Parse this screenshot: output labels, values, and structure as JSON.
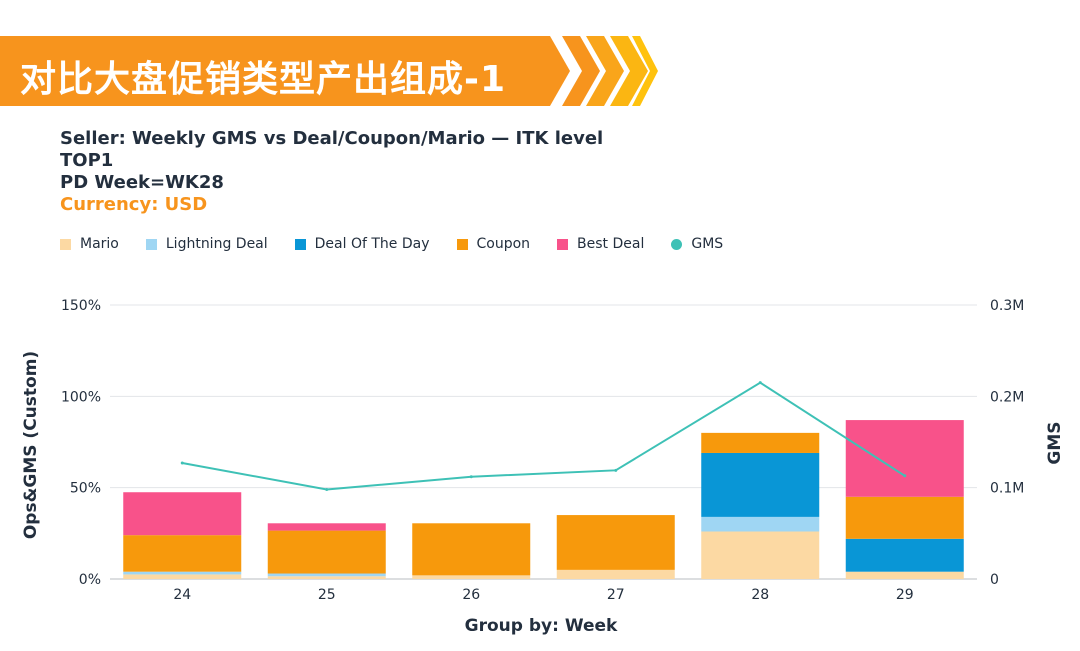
{
  "banner": {
    "title": "对比大盘促销类型产出组成-1",
    "color": "#f7941d",
    "chevron_colors": [
      "#f7941d",
      "#f9a51a",
      "#fbb612",
      "#ffc20e"
    ]
  },
  "info": {
    "line1": "Seller: Weekly GMS vs Deal/Coupon/Mario — ITK level",
    "line2": "TOP1",
    "line3": "PD Week=WK28",
    "currency": "Currency: USD"
  },
  "legend": [
    {
      "label": "Mario",
      "color": "#fcd9a3",
      "shape": "square"
    },
    {
      "label": "Lightning Deal",
      "color": "#9fd6f3",
      "shape": "square"
    },
    {
      "label": "Deal Of The Day",
      "color": "#0996d6",
      "shape": "square"
    },
    {
      "label": "Coupon",
      "color": "#f7990c",
      "shape": "square"
    },
    {
      "label": "Best Deal",
      "color": "#f8528a",
      "shape": "square"
    },
    {
      "label": "GMS",
      "color": "#3ec1b6",
      "shape": "circle"
    }
  ],
  "chart_data": {
    "type": "bar",
    "stacked": true,
    "categories": [
      "24",
      "25",
      "26",
      "27",
      "28",
      "29"
    ],
    "series": [
      {
        "name": "Mario",
        "color": "#fcd9a3",
        "values": [
          2.5,
          1.5,
          2,
          5,
          26,
          4
        ]
      },
      {
        "name": "Lightning Deal",
        "color": "#9fd6f3",
        "values": [
          1.5,
          1.5,
          0,
          0,
          8,
          0
        ]
      },
      {
        "name": "Deal Of The Day",
        "color": "#0996d6",
        "values": [
          0,
          0,
          0,
          0,
          35,
          18
        ]
      },
      {
        "name": "Coupon",
        "color": "#f7990c",
        "values": [
          20,
          23.5,
          28.5,
          30,
          11,
          23
        ]
      },
      {
        "name": "Best Deal",
        "color": "#f8528a",
        "values": [
          23.5,
          4,
          0,
          0,
          0,
          42
        ]
      }
    ],
    "line_series": {
      "name": "GMS",
      "color": "#3ec1b6",
      "values": [
        127000,
        98000,
        112000,
        119000,
        215000,
        113000
      ]
    },
    "ylabel": "Ops&GMS (Custom)",
    "y2label": "GMS",
    "xlabel": "Group by: Week",
    "ylim": [
      0,
      150
    ],
    "y_ticks": [
      "0%",
      "50%",
      "100%",
      "150%"
    ],
    "y2lim": [
      0,
      300000
    ],
    "y2_ticks": [
      "0",
      "0.1M",
      "0.2M",
      "0.3M"
    ],
    "grid": true,
    "legend_position": "top-left"
  }
}
